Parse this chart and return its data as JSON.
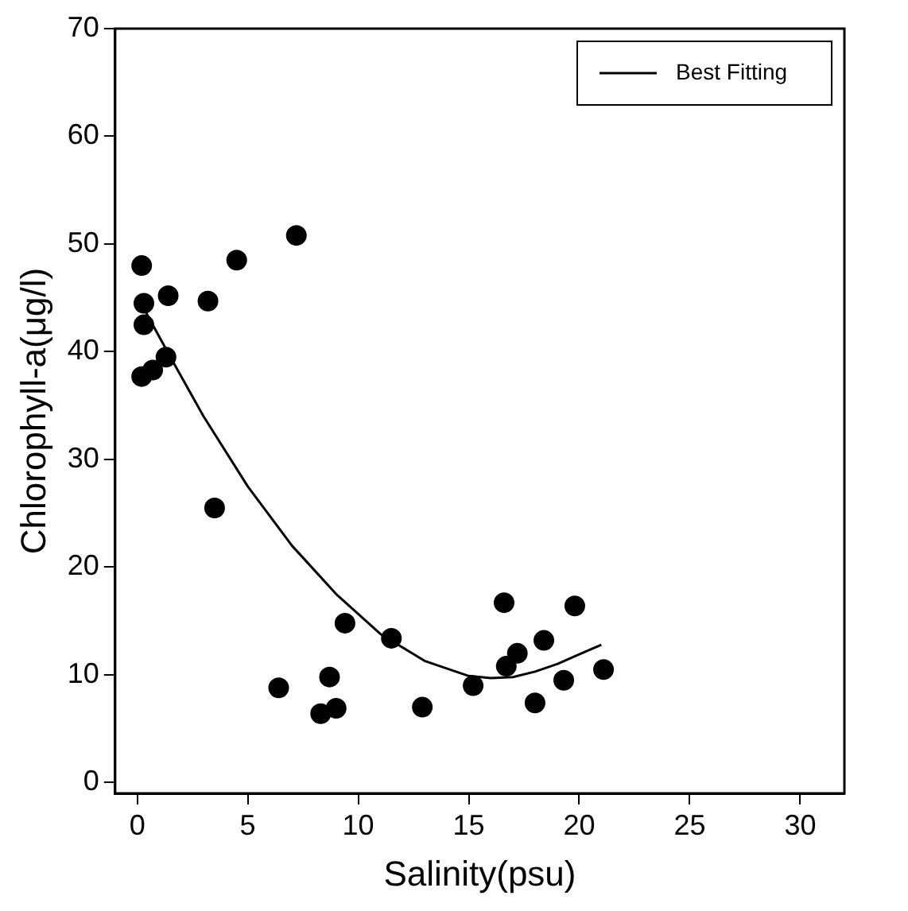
{
  "chart_data": {
    "type": "scatter",
    "xlabel": "Salinity(psu)",
    "ylabel": "Chlorophyll-a(μg/l)",
    "xlim": [
      -1,
      32
    ],
    "xticks": [
      0,
      5,
      10,
      15,
      20,
      25,
      30
    ],
    "ylim": [
      -1,
      70
    ],
    "yticks": [
      0,
      10,
      20,
      30,
      40,
      50,
      60,
      70
    ],
    "grid": false,
    "legend": "top right",
    "marker": "circle",
    "series": [
      {
        "color": "#000000",
        "x": [
          0.2,
          0.3,
          0.3,
          0.2,
          0.7,
          1.3,
          1.4,
          3.2,
          4.5,
          7.2,
          3.5,
          6.4,
          8.3,
          8.7,
          9.0,
          9.4,
          11.5,
          12.9,
          15.2,
          16.6,
          16.7,
          17.2,
          18.0,
          18.4,
          19.3,
          19.8,
          21.1
        ],
        "values": [
          48,
          44.5,
          42.5,
          37.7,
          38.3,
          39.5,
          45.2,
          44.7,
          48.5,
          50.8,
          25.5,
          8.8,
          6.4,
          9.8,
          6.9,
          14.8,
          13.4,
          7,
          9,
          16.7,
          10.8,
          12,
          7.4,
          13.2,
          9.5,
          16.4,
          10.5
        ]
      },
      {
        "type": "line",
        "name": "Best Fitting",
        "color": "#000000",
        "line_style": "solid",
        "marker": "none",
        "x": [
          0.3,
          1.5,
          3,
          5,
          7,
          9,
          11,
          13,
          15,
          16,
          17,
          18,
          19,
          20,
          21
        ],
        "values": [
          44,
          39.5,
          34,
          27.5,
          22,
          17.5,
          13.8,
          11.3,
          9.9,
          9.7,
          9.8,
          10.3,
          11,
          11.9,
          12.8
        ]
      }
    ]
  }
}
